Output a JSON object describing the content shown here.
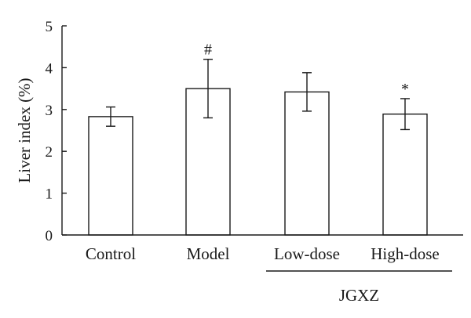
{
  "chart_data": {
    "type": "bar",
    "categories": [
      "Control",
      "Model",
      "Low-dose",
      "High-dose"
    ],
    "values": [
      2.83,
      3.5,
      3.42,
      2.89
    ],
    "errors": [
      0.23,
      0.7,
      0.46,
      0.37
    ],
    "significance": [
      "",
      "#",
      "",
      "*"
    ],
    "title": "",
    "xlabel": "",
    "ylabel": "Liver index (%)",
    "ylim": [
      0,
      5
    ],
    "yticks": [
      "0",
      "1",
      "2",
      "3",
      "4",
      "5"
    ],
    "grid": false,
    "legend": "none",
    "group": {
      "label": "JGXZ",
      "categories": [
        "Low-dose",
        "High-dose"
      ]
    },
    "colors": {
      "bar_fill": "#ffffff",
      "stroke": "#1a1a1a"
    }
  }
}
